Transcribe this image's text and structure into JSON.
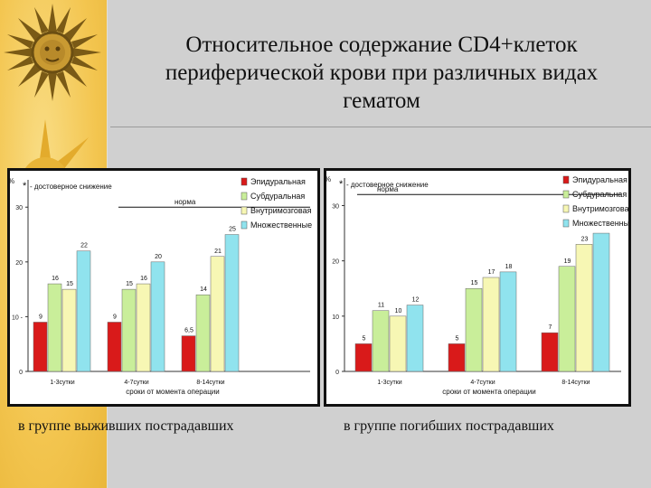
{
  "title": "Относительное  содержание CD4+клеток\nпериферической крови при различных видах\nгематом",
  "captions": [
    "в группе выживших пострадавших",
    "в группе погибших пострадавших"
  ],
  "colors": {
    "epidural": "#d91a1a",
    "subdural": "#c9ee9a",
    "intracerebral": "#f7f7b4",
    "multiple": "#90e3ee"
  },
  "chart_data": [
    {
      "type": "bar",
      "categories": [
        "1-3сутки",
        "4-7сутки",
        "8-14сутки"
      ],
      "series": [
        {
          "name": "Эпидуральная",
          "values": [
            9,
            9,
            6.5
          ]
        },
        {
          "name": "Субдуральная",
          "values": [
            16,
            15,
            14
          ]
        },
        {
          "name": "Внутримозговая",
          "values": [
            15,
            16,
            21
          ]
        },
        {
          "name": "Множественные",
          "values": [
            22,
            20,
            25
          ]
        }
      ],
      "data_labels": [
        [
          "9",
          "16",
          "15",
          "22"
        ],
        [
          "9",
          "15",
          "16",
          "20"
        ],
        [
          "6,5",
          "14",
          "21",
          "25"
        ]
      ],
      "yticks": [
        "0",
        "10 -",
        "20",
        "30"
      ],
      "ylim": [
        0,
        34
      ],
      "norm_value": 30,
      "norm_label": "норма",
      "significance_note": "- достоверное снижение",
      "significance_mark": "*",
      "axis_mark": "%",
      "xlabel": "сроки от момента операции",
      "legend": "top-right"
    },
    {
      "type": "bar",
      "categories": [
        "1-3сутки",
        "4-7сутки",
        "8-14сутки"
      ],
      "series": [
        {
          "name": "Эпидуральная",
          "values": [
            5,
            5,
            7
          ]
        },
        {
          "name": "Субдуральная",
          "values": [
            11,
            15,
            19
          ]
        },
        {
          "name": "Внутримозговая",
          "values": [
            10,
            17,
            23
          ]
        },
        {
          "name": "Множественные",
          "values": [
            12,
            18,
            25
          ]
        }
      ],
      "data_labels": [
        [
          "5",
          "11",
          "10",
          "12"
        ],
        [
          "5",
          "15",
          "17",
          "18"
        ],
        [
          "7",
          "19",
          "23",
          ""
        ]
      ],
      "yticks": [
        "0",
        "10",
        "20",
        "30"
      ],
      "ylim": [
        0,
        34
      ],
      "norm_value": 32,
      "norm_label": "норма",
      "significance_note": "- достоверное снижение",
      "significance_mark": "*",
      "axis_mark": "%",
      "xlabel": "сроки от момента операции",
      "legend": "top-right"
    }
  ]
}
